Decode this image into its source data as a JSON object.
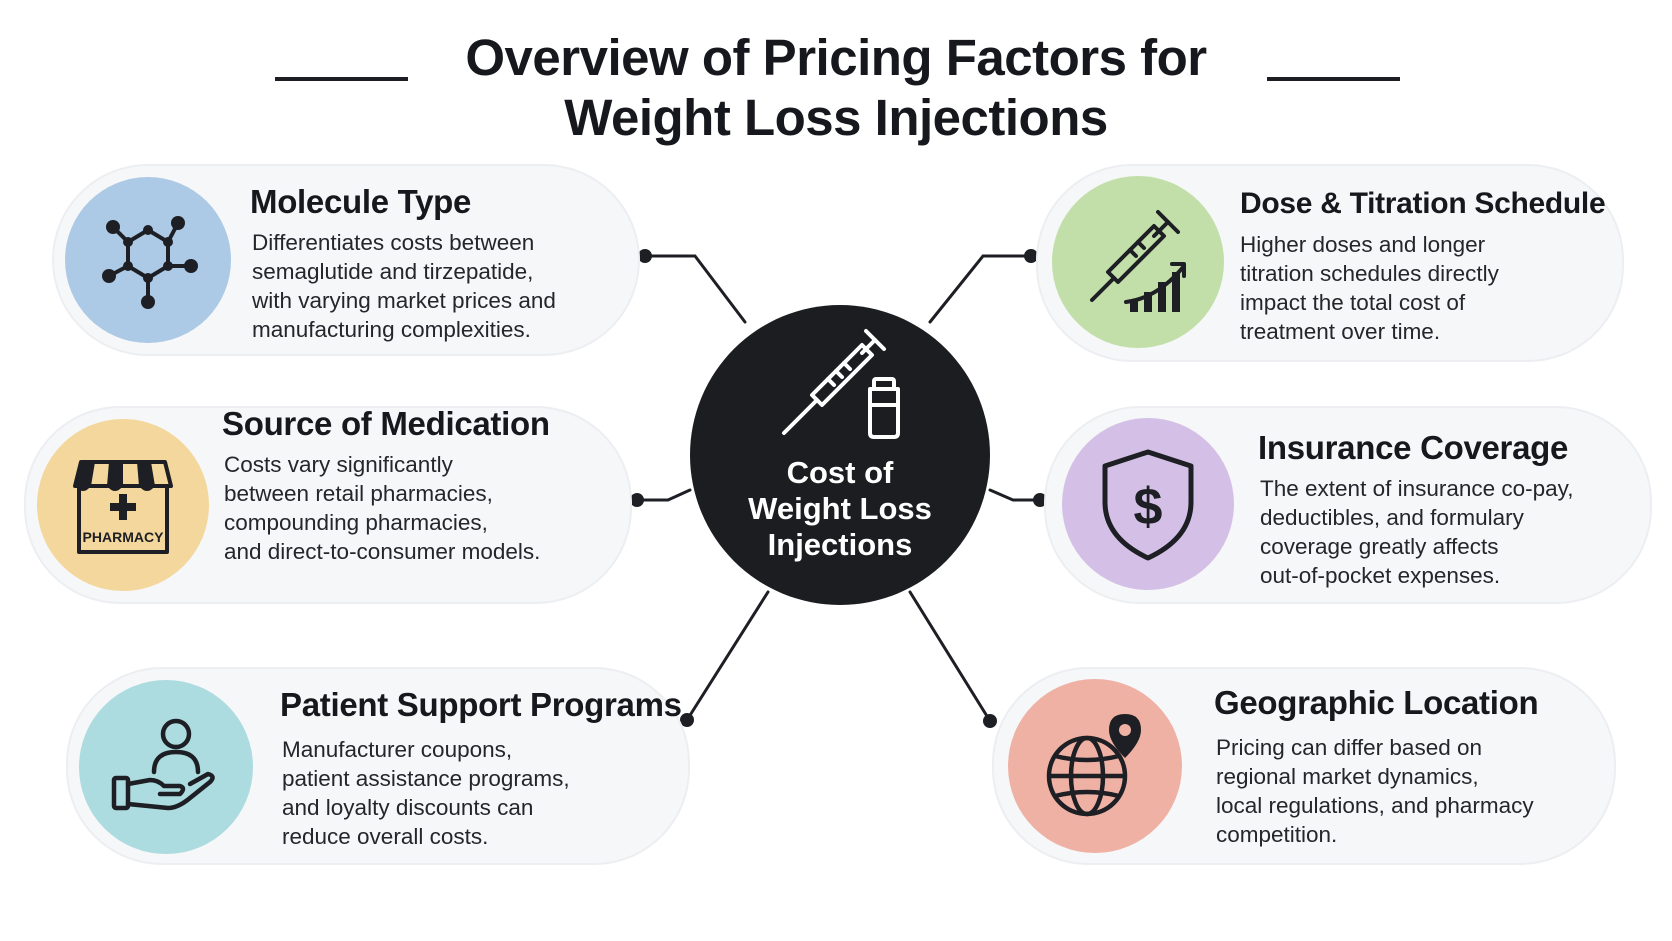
{
  "title": {
    "line1": "Overview of Pricing Factors for",
    "line2": "Weight Loss Injections"
  },
  "center": {
    "icon": "syringe-vial-icon",
    "label_lines": [
      "Cost of",
      "Weight Loss",
      "Injections"
    ]
  },
  "factors": [
    {
      "title": "Molecule Type",
      "icon": "molecule-icon",
      "color": "#acc9e6",
      "description": [
        "Differentiates costs between",
        "semaglutide and tirzepatide,",
        "with varying market prices and",
        "manufacturing complexities."
      ]
    },
    {
      "title": "Source of Medication",
      "icon": "pharmacy-storefront-icon",
      "icon_text": "PHARMACY",
      "color": "#f4d79c",
      "description": [
        "Costs vary significantly",
        "between retail pharmacies,",
        "compounding pharmacies,",
        "and direct-to-consumer models."
      ]
    },
    {
      "title": "Patient Support Programs",
      "icon": "hand-holding-person-icon",
      "color": "#acdbe0",
      "description": [
        "Manufacturer coupons,",
        "patient assistance programs,",
        "and loyalty discounts can",
        "reduce overall costs."
      ]
    },
    {
      "title": "Dose & Titration Schedule",
      "icon": "syringe-rising-bars-icon",
      "color": "#c3dfa9",
      "description": [
        "Higher doses and longer",
        "titration schedules directly",
        "impact the total cost of",
        "treatment over time."
      ]
    },
    {
      "title": "Insurance Coverage",
      "icon": "shield-dollar-icon",
      "color": "#d4c0e7",
      "description": [
        "The extent of insurance co-pay,",
        "deductibles, and formulary",
        "coverage greatly affects",
        "out-of-pocket expenses."
      ]
    },
    {
      "title": "Geographic Location",
      "icon": "globe-pin-icon",
      "color": "#f0b1a5",
      "description": [
        "Pricing can differ based on",
        "regional market dynamics,",
        "local regulations, and pharmacy",
        "competition."
      ]
    }
  ]
}
